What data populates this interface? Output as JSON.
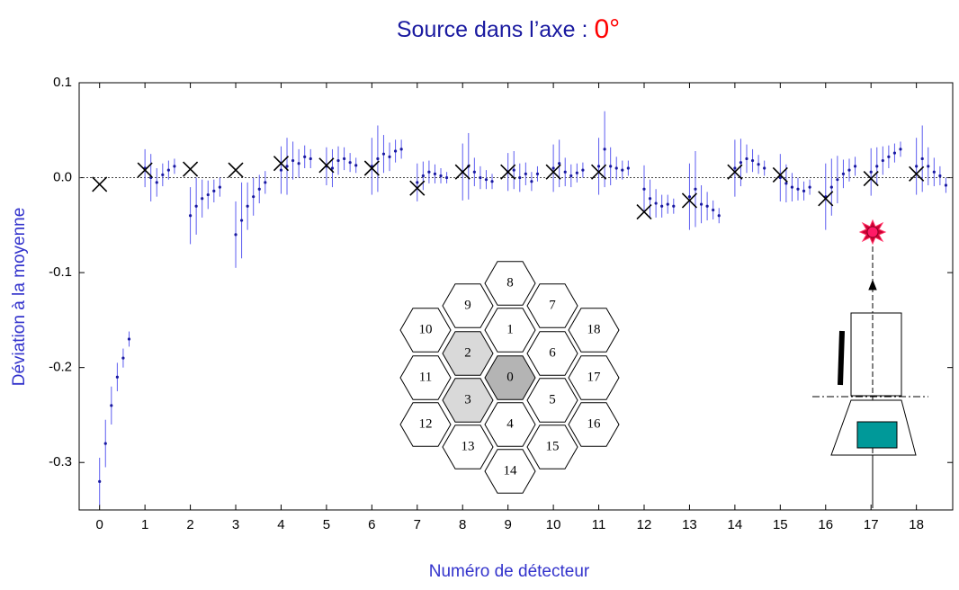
{
  "chart_data": {
    "type": "scatter",
    "title": "Source dans l’axe : ",
    "title_highlight": "0°",
    "x_label": "Numéro de détecteur",
    "y_label": "Déviation à la moyenne",
    "xlim": [
      -0.45,
      18.8
    ],
    "ylim": [
      -0.35,
      0.1
    ],
    "xticks": [
      0,
      1,
      2,
      3,
      4,
      5,
      6,
      7,
      8,
      9,
      10,
      11,
      12,
      13,
      14,
      15,
      16,
      17,
      18
    ],
    "yticks": [
      0.1,
      {
        "value": 0,
        "label": "0.0"
      },
      -0.1,
      -0.2,
      -0.3
    ],
    "reference_line": 0,
    "series": [
      {
        "color": "#1a1aa0",
        "error_color": "#5c5cf0",
        "marker": "dot",
        "x": [
          0,
          0.13,
          0.26,
          0.39,
          0.52,
          0.65,
          1,
          1.13,
          1.26,
          1.39,
          1.52,
          1.65,
          2,
          2.13,
          2.26,
          2.39,
          2.52,
          2.65,
          3,
          3.13,
          3.26,
          3.39,
          3.52,
          3.65,
          4,
          4.13,
          4.26,
          4.39,
          4.52,
          4.65,
          5,
          5.13,
          5.26,
          5.39,
          5.52,
          5.65,
          6,
          6.13,
          6.26,
          6.39,
          6.52,
          6.65,
          7,
          7.13,
          7.26,
          7.39,
          7.52,
          7.65,
          8,
          8.13,
          8.26,
          8.39,
          8.52,
          8.65,
          9,
          9.13,
          9.26,
          9.39,
          9.52,
          9.65,
          10,
          10.13,
          10.26,
          10.39,
          10.52,
          10.65,
          11,
          11.13,
          11.26,
          11.39,
          11.52,
          11.65,
          12,
          12.13,
          12.26,
          12.39,
          12.52,
          12.65,
          13,
          13.13,
          13.26,
          13.39,
          13.52,
          13.65,
          14,
          14.13,
          14.26,
          14.39,
          14.52,
          14.65,
          15,
          15.13,
          15.26,
          15.39,
          15.52,
          15.65,
          16,
          16.13,
          16.26,
          16.39,
          16.52,
          16.65,
          17,
          17.13,
          17.26,
          17.39,
          17.52,
          17.65,
          18,
          18.13,
          18.26,
          18.39,
          18.52,
          18.65
        ],
        "values": [
          -0.32,
          -0.28,
          -0.24,
          -0.21,
          -0.19,
          -0.17,
          0.01,
          0.0,
          -0.005,
          0.003,
          0.008,
          0.012,
          -0.04,
          -0.03,
          -0.022,
          -0.018,
          -0.014,
          -0.01,
          -0.06,
          -0.045,
          -0.03,
          -0.02,
          -0.012,
          -0.005,
          0.008,
          0.012,
          0.018,
          0.015,
          0.022,
          0.02,
          0.012,
          0.01,
          0.018,
          0.02,
          0.016,
          0.013,
          0.012,
          0.02,
          0.025,
          0.022,
          0.028,
          0.03,
          -0.005,
          0.002,
          0.006,
          0.004,
          0.002,
          0.0,
          0.006,
          0.012,
          0.006,
          0.0,
          -0.002,
          -0.004,
          0.006,
          0.008,
          0.0,
          0.004,
          -0.004,
          0.004,
          0.01,
          0.015,
          0.006,
          0.002,
          0.005,
          0.008,
          0.012,
          0.03,
          0.012,
          0.01,
          0.008,
          0.01,
          -0.012,
          -0.022,
          -0.027,
          -0.03,
          -0.028,
          -0.03,
          -0.02,
          -0.012,
          -0.028,
          -0.03,
          -0.034,
          -0.04,
          0.01,
          0.016,
          0.02,
          0.018,
          0.014,
          0.01,
          0.0,
          -0.006,
          -0.01,
          -0.012,
          -0.014,
          -0.01,
          -0.02,
          -0.01,
          -0.002,
          0.004,
          0.008,
          0.012,
          0.006,
          0.012,
          0.018,
          0.022,
          0.026,
          0.03,
          0.012,
          0.02,
          0.012,
          0.006,
          0.002,
          -0.008
        ],
        "errors": [
          0.025,
          0.025,
          0.02,
          0.015,
          0.01,
          0.008,
          0.02,
          0.025,
          0.015,
          0.012,
          0.01,
          0.008,
          0.03,
          0.03,
          0.02,
          0.015,
          0.012,
          0.01,
          0.035,
          0.04,
          0.025,
          0.02,
          0.015,
          0.012,
          0.025,
          0.03,
          0.02,
          0.015,
          0.012,
          0.01,
          0.02,
          0.02,
          0.015,
          0.012,
          0.01,
          0.008,
          0.03,
          0.035,
          0.02,
          0.015,
          0.012,
          0.01,
          0.02,
          0.015,
          0.012,
          0.01,
          0.008,
          0.006,
          0.03,
          0.035,
          0.015,
          0.012,
          0.01,
          0.008,
          0.02,
          0.02,
          0.015,
          0.012,
          0.01,
          0.008,
          0.025,
          0.025,
          0.015,
          0.012,
          0.01,
          0.008,
          0.03,
          0.04,
          0.02,
          0.012,
          0.01,
          0.008,
          0.025,
          0.02,
          0.015,
          0.012,
          0.01,
          0.008,
          0.035,
          0.04,
          0.02,
          0.015,
          0.01,
          0.008,
          0.03,
          0.025,
          0.015,
          0.012,
          0.01,
          0.008,
          0.025,
          0.02,
          0.015,
          0.012,
          0.01,
          0.008,
          0.035,
          0.03,
          0.025,
          0.015,
          0.012,
          0.01,
          0.025,
          0.02,
          0.015,
          0.012,
          0.01,
          0.008,
          0.03,
          0.035,
          0.02,
          0.015,
          0.01,
          0.008
        ]
      },
      {
        "color": "#000000",
        "marker": "cross",
        "x": [
          0,
          1,
          2,
          3,
          4,
          5,
          6,
          7,
          8,
          9,
          10,
          11,
          12,
          13,
          14,
          15,
          16,
          17,
          18
        ],
        "values": [
          -0.007,
          0.008,
          0.009,
          0.008,
          0.015,
          0.013,
          0.01,
          -0.011,
          0.006,
          0.006,
          0.006,
          0.006,
          -0.036,
          -0.024,
          0.006,
          0.003,
          -0.022,
          -0.001,
          0.004
        ]
      }
    ]
  },
  "detector_map": {
    "cells": [
      "0",
      "1",
      "2",
      "3",
      "4",
      "5",
      "6",
      "7",
      "8",
      "9",
      "10",
      "11",
      "12",
      "13",
      "14",
      "15",
      "16",
      "17",
      "18"
    ]
  }
}
